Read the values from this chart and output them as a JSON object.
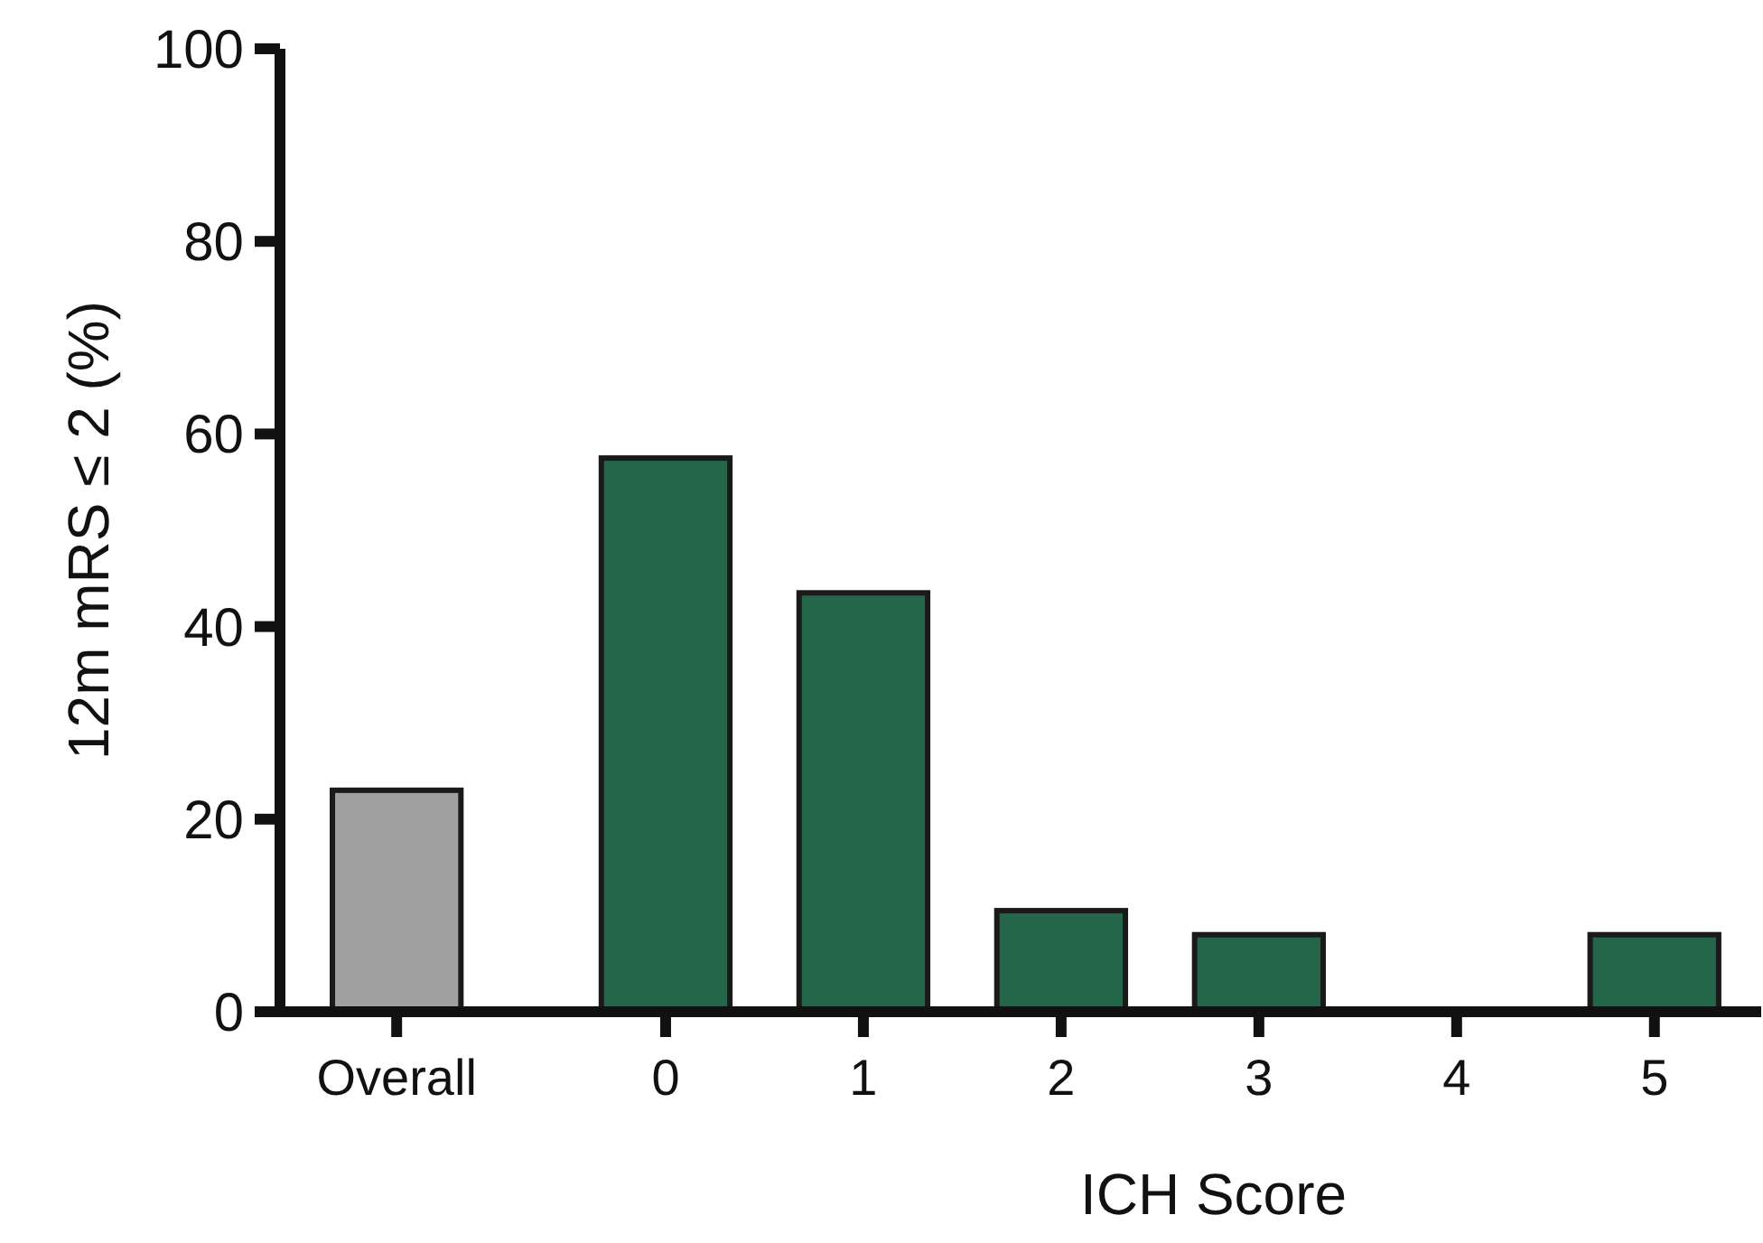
{
  "chart_data": {
    "type": "bar",
    "xlabel": "ICH Score",
    "ylabel": "12m mRS ≤ 2 (%)",
    "categories": [
      "Overall",
      "0",
      "1",
      "2",
      "3",
      "4",
      "5"
    ],
    "values": [
      23,
      57.5,
      43.5,
      10.5,
      8,
      0,
      8
    ],
    "colors": [
      "#a0a0a0",
      "#24664a",
      "#24664a",
      "#24664a",
      "#24664a",
      "#24664a",
      "#24664a"
    ],
    "ylim": [
      0,
      100
    ],
    "yticks": [
      0,
      20,
      40,
      60,
      80,
      100
    ]
  }
}
